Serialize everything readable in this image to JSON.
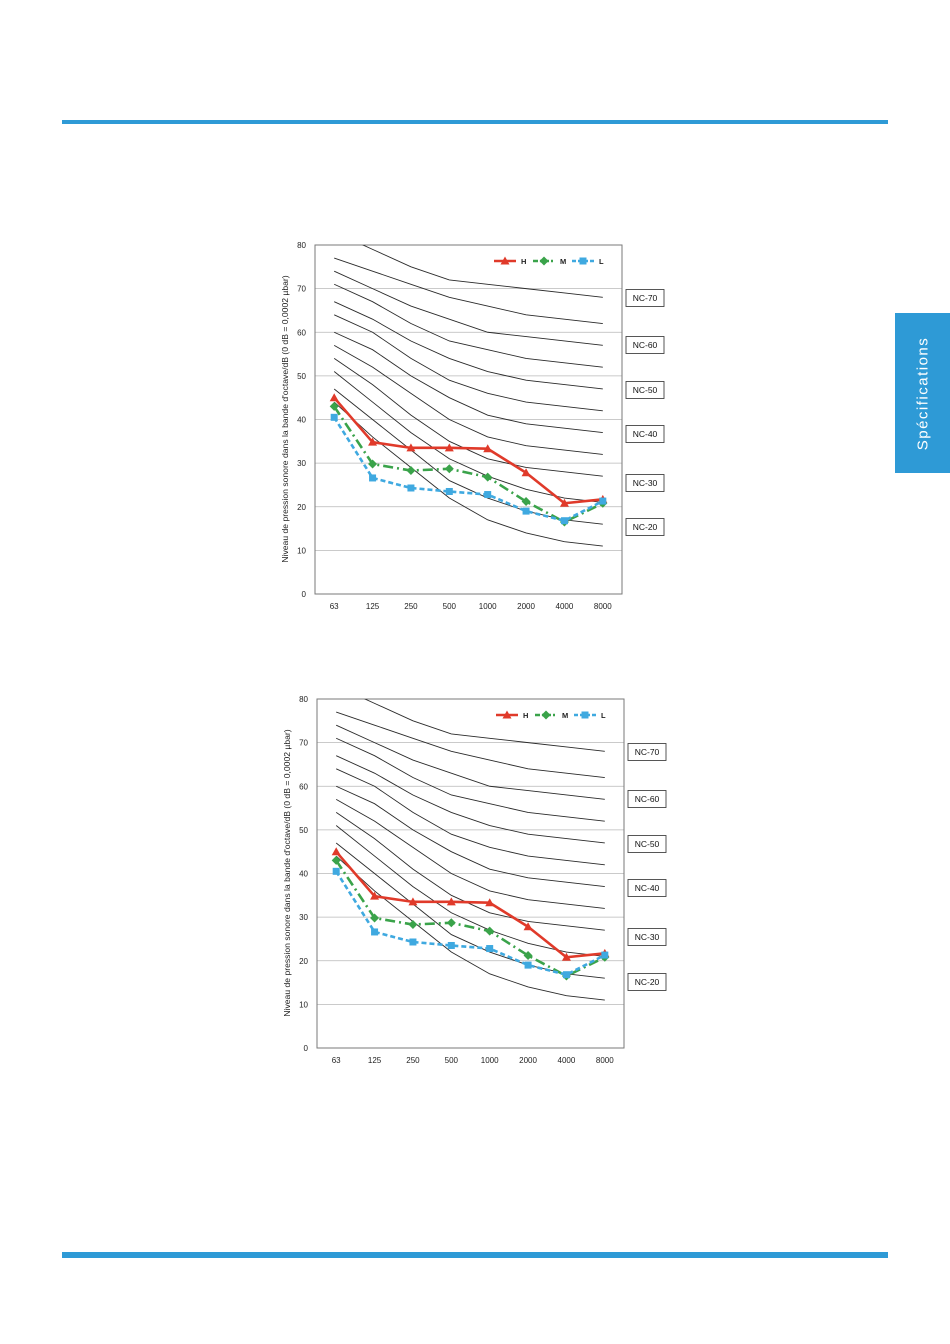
{
  "side_tab": {
    "label": "Spécifications"
  },
  "colors": {
    "accent": "#2e9ad6",
    "H": "#e03a2a",
    "M": "#3aa34a",
    "L": "#3fa9e0"
  },
  "chart_data": [
    {
      "type": "line",
      "title": "",
      "xlabel": "",
      "ylabel": "Niveau de pression sonore dans la bande d'octave/dB (0 dB = 0,0002 µbar)",
      "categories": [
        "63",
        "125",
        "250",
        "500",
        "1000",
        "2000",
        "4000",
        "8000"
      ],
      "ylim": [
        0,
        80
      ],
      "yticks": [
        "0",
        "10",
        "20",
        "30",
        "40",
        "50",
        "60",
        "70",
        "80"
      ],
      "grid": "horizontal",
      "legend": "top-right",
      "series": [
        {
          "name": "H",
          "color": "#e03a2a",
          "marker": "triangle",
          "values": [
            45,
            34.8,
            33.5,
            33.5,
            33.3,
            27.8,
            20.8,
            21.7
          ]
        },
        {
          "name": "M",
          "color": "#3aa34a",
          "marker": "diamond",
          "values": [
            43,
            29.8,
            28.3,
            28.7,
            26.8,
            21.2,
            16.5,
            20.8
          ]
        },
        {
          "name": "L",
          "color": "#3fa9e0",
          "marker": "square",
          "values": [
            40.5,
            26.6,
            24.3,
            23.5,
            22.8,
            19,
            16.8,
            21.3
          ]
        }
      ],
      "nc_curves": [
        {
          "label": "NC-70",
          "values": [
            83,
            79,
            75,
            72,
            71,
            70,
            69,
            68
          ]
        },
        {
          "label": "",
          "values": [
            77,
            74,
            71,
            68,
            66,
            64,
            63,
            62
          ]
        },
        {
          "label": "NC-60",
          "values": [
            74,
            70,
            66,
            63,
            60,
            59,
            58,
            57
          ]
        },
        {
          "label": "",
          "values": [
            71,
            67,
            62,
            58,
            56,
            54,
            53,
            52
          ]
        },
        {
          "label": "NC-50",
          "values": [
            67,
            63,
            58,
            54,
            51,
            49,
            48,
            47
          ]
        },
        {
          "label": "",
          "values": [
            64,
            60,
            54,
            49,
            46,
            44,
            43,
            42
          ]
        },
        {
          "label": "NC-40",
          "values": [
            60,
            56,
            50,
            45,
            41,
            39,
            38,
            37
          ]
        },
        {
          "label": "",
          "values": [
            57,
            52,
            46,
            40,
            36,
            34,
            33,
            32
          ]
        },
        {
          "label": "NC-30",
          "values": [
            54,
            48,
            41,
            35,
            31,
            29,
            28,
            27
          ]
        },
        {
          "label": "",
          "values": [
            51,
            44,
            37,
            31,
            27,
            24,
            22,
            21
          ]
        },
        {
          "label": "NC-20",
          "values": [
            47,
            40,
            33,
            26,
            22,
            19,
            17,
            16
          ]
        },
        {
          "label": "",
          "values": [
            44,
            36,
            29,
            22,
            17,
            14,
            12,
            11
          ]
        }
      ]
    },
    {
      "type": "line",
      "title": "",
      "xlabel": "",
      "ylabel": "Niveau de pression sonore dans la bande d'octave/dB (0 dB = 0,0002 µbar)",
      "categories": [
        "63",
        "125",
        "250",
        "500",
        "1000",
        "2000",
        "4000",
        "8000"
      ],
      "ylim": [
        0,
        80
      ],
      "yticks": [
        "0",
        "10",
        "20",
        "30",
        "40",
        "50",
        "60",
        "70",
        "80"
      ],
      "grid": "horizontal",
      "legend": "top-right",
      "series": [
        {
          "name": "H",
          "color": "#e03a2a",
          "marker": "triangle",
          "values": [
            45,
            34.8,
            33.5,
            33.5,
            33.3,
            27.8,
            20.8,
            21.7
          ]
        },
        {
          "name": "M",
          "color": "#3aa34a",
          "marker": "diamond",
          "values": [
            43,
            29.8,
            28.3,
            28.7,
            26.8,
            21.2,
            16.5,
            20.8
          ]
        },
        {
          "name": "L",
          "color": "#3fa9e0",
          "marker": "square",
          "values": [
            40.5,
            26.6,
            24.3,
            23.5,
            22.8,
            19,
            16.8,
            21.3
          ]
        }
      ],
      "nc_curves": [
        {
          "label": "NC-70",
          "values": [
            83,
            79,
            75,
            72,
            71,
            70,
            69,
            68
          ]
        },
        {
          "label": "",
          "values": [
            77,
            74,
            71,
            68,
            66,
            64,
            63,
            62
          ]
        },
        {
          "label": "NC-60",
          "values": [
            74,
            70,
            66,
            63,
            60,
            59,
            58,
            57
          ]
        },
        {
          "label": "",
          "values": [
            71,
            67,
            62,
            58,
            56,
            54,
            53,
            52
          ]
        },
        {
          "label": "NC-50",
          "values": [
            67,
            63,
            58,
            54,
            51,
            49,
            48,
            47
          ]
        },
        {
          "label": "",
          "values": [
            64,
            60,
            54,
            49,
            46,
            44,
            43,
            42
          ]
        },
        {
          "label": "NC-40",
          "values": [
            60,
            56,
            50,
            45,
            41,
            39,
            38,
            37
          ]
        },
        {
          "label": "",
          "values": [
            57,
            52,
            46,
            40,
            36,
            34,
            33,
            32
          ]
        },
        {
          "label": "NC-30",
          "values": [
            54,
            48,
            41,
            35,
            31,
            29,
            28,
            27
          ]
        },
        {
          "label": "",
          "values": [
            51,
            44,
            37,
            31,
            27,
            24,
            22,
            21
          ]
        },
        {
          "label": "NC-20",
          "values": [
            47,
            40,
            33,
            26,
            22,
            19,
            17,
            16
          ]
        },
        {
          "label": "",
          "values": [
            44,
            36,
            29,
            22,
            17,
            14,
            12,
            11
          ]
        }
      ]
    }
  ]
}
